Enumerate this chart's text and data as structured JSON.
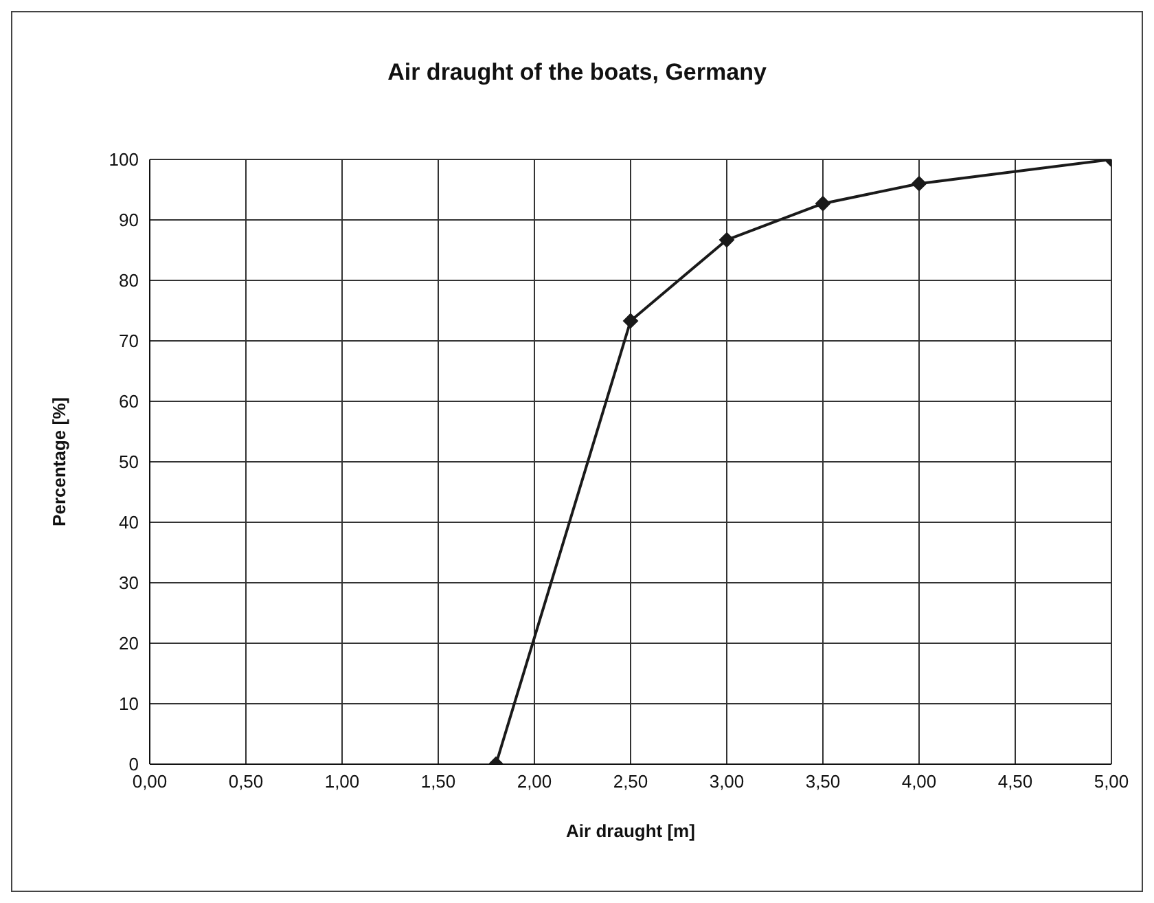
{
  "chart_data": {
    "type": "line",
    "title": "Air draught of the boats, Germany",
    "xlabel": "Air draught [m]",
    "ylabel": "Percentage [%]",
    "x": [
      1.8,
      2.5,
      3.0,
      3.5,
      4.0,
      5.0
    ],
    "series": [
      {
        "color": "#1a1a1a",
        "values": [
          0,
          73.3,
          86.7,
          92.7,
          96,
          100
        ]
      }
    ],
    "xlim": [
      0,
      5
    ],
    "xticks": [
      {
        "value": 0,
        "label": "0,00"
      },
      {
        "value": 0.5,
        "label": "0,50"
      },
      {
        "value": 1,
        "label": "1,00"
      },
      {
        "value": 1.5,
        "label": "1,50"
      },
      {
        "value": 2,
        "label": "2,00"
      },
      {
        "value": 2.5,
        "label": "2,50"
      },
      {
        "value": 3,
        "label": "3,00"
      },
      {
        "value": 3.5,
        "label": "3,50"
      },
      {
        "value": 4,
        "label": "4,00"
      },
      {
        "value": 4.5,
        "label": "4,50"
      },
      {
        "value": 5,
        "label": "5,00"
      }
    ],
    "ylim": [
      0,
      100
    ],
    "yticks": [
      0,
      10,
      20,
      30,
      40,
      50,
      60,
      70,
      80,
      90,
      100
    ],
    "grid": true,
    "marker": "diamond",
    "line_style": "solid"
  }
}
